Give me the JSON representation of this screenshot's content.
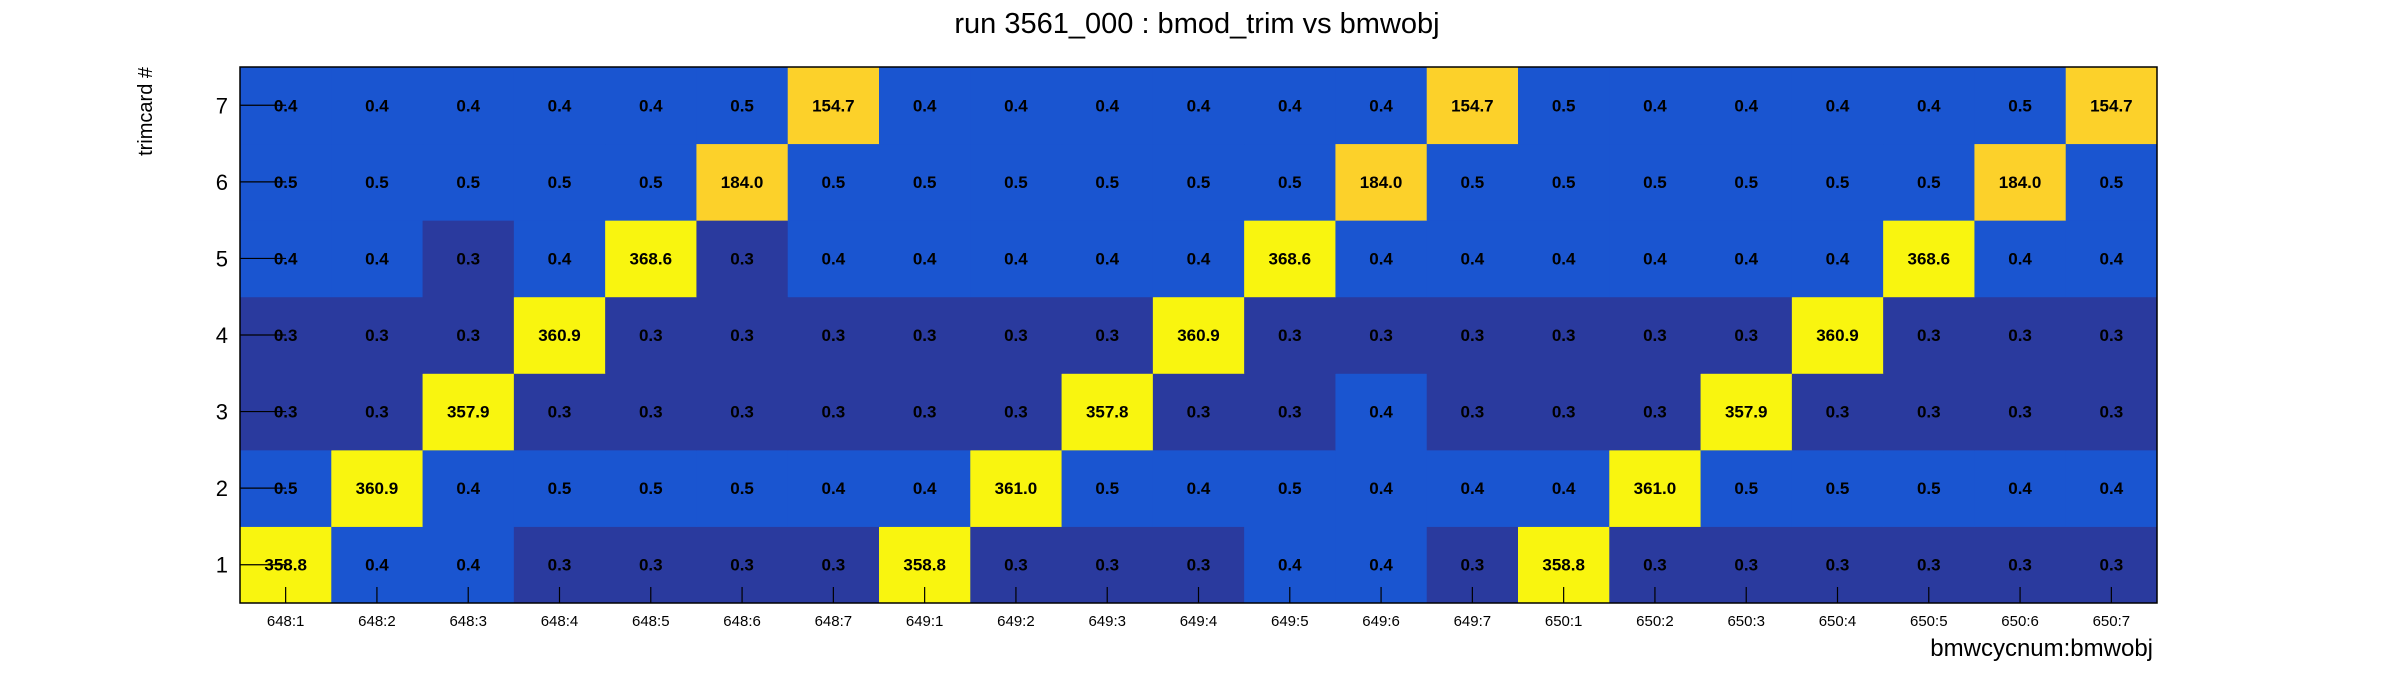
{
  "chart_data": {
    "type": "heatmap",
    "title": "run 3561_000 : bmod_trim vs bmwobj",
    "xlabel": "bmwcycnum:bmwobj",
    "ylabel": "trimcard #",
    "x_categories": [
      "648:1",
      "648:2",
      "648:3",
      "648:4",
      "648:5",
      "648:6",
      "648:7",
      "649:1",
      "649:2",
      "649:3",
      "649:4",
      "649:5",
      "649:6",
      "649:7",
      "650:1",
      "650:2",
      "650:3",
      "650:4",
      "650:5",
      "650:6",
      "650:7"
    ],
    "y_categories": [
      "1",
      "2",
      "3",
      "4",
      "5",
      "6",
      "7"
    ],
    "values": [
      [
        "358.8",
        "0.4",
        "0.4",
        "0.3",
        "0.3",
        "0.3",
        "0.3",
        "358.8",
        "0.3",
        "0.3",
        "0.3",
        "0.4",
        "0.4",
        "0.3",
        "358.8",
        "0.3",
        "0.3",
        "0.3",
        "0.3",
        "0.3",
        "0.3"
      ],
      [
        "0.5",
        "360.9",
        "0.4",
        "0.5",
        "0.5",
        "0.5",
        "0.4",
        "0.4",
        "361.0",
        "0.5",
        "0.4",
        "0.5",
        "0.4",
        "0.4",
        "0.4",
        "361.0",
        "0.5",
        "0.5",
        "0.5",
        "0.4",
        "0.4"
      ],
      [
        "0.3",
        "0.3",
        "357.9",
        "0.3",
        "0.3",
        "0.3",
        "0.3",
        "0.3",
        "0.3",
        "357.8",
        "0.3",
        "0.3",
        "0.4",
        "0.3",
        "0.3",
        "0.3",
        "357.9",
        "0.3",
        "0.3",
        "0.3",
        "0.3"
      ],
      [
        "0.3",
        "0.3",
        "0.3",
        "360.9",
        "0.3",
        "0.3",
        "0.3",
        "0.3",
        "0.3",
        "0.3",
        "360.9",
        "0.3",
        "0.3",
        "0.3",
        "0.3",
        "0.3",
        "0.3",
        "360.9",
        "0.3",
        "0.3",
        "0.3"
      ],
      [
        "0.4",
        "0.4",
        "0.3",
        "0.4",
        "368.6",
        "0.3",
        "0.4",
        "0.4",
        "0.4",
        "0.4",
        "0.4",
        "368.6",
        "0.4",
        "0.4",
        "0.4",
        "0.4",
        "0.4",
        "0.4",
        "368.6",
        "0.4",
        "0.4"
      ],
      [
        "0.5",
        "0.5",
        "0.5",
        "0.5",
        "0.5",
        "184.0",
        "0.5",
        "0.5",
        "0.5",
        "0.5",
        "0.5",
        "0.5",
        "184.0",
        "0.5",
        "0.5",
        "0.5",
        "0.5",
        "0.5",
        "0.5",
        "184.0",
        "0.5"
      ],
      [
        "0.4",
        "0.4",
        "0.4",
        "0.4",
        "0.4",
        "0.5",
        "154.7",
        "0.4",
        "0.4",
        "0.4",
        "0.4",
        "0.4",
        "0.4",
        "154.7",
        "0.5",
        "0.4",
        "0.4",
        "0.4",
        "0.4",
        "0.5",
        "154.7"
      ]
    ],
    "color_scale": {
      "low_dark": "#2a3a9e",
      "low_mid": "#1a55d0",
      "mid": "#fcd12a",
      "high": "#f9f50f"
    },
    "grid": false,
    "legend": "none"
  }
}
